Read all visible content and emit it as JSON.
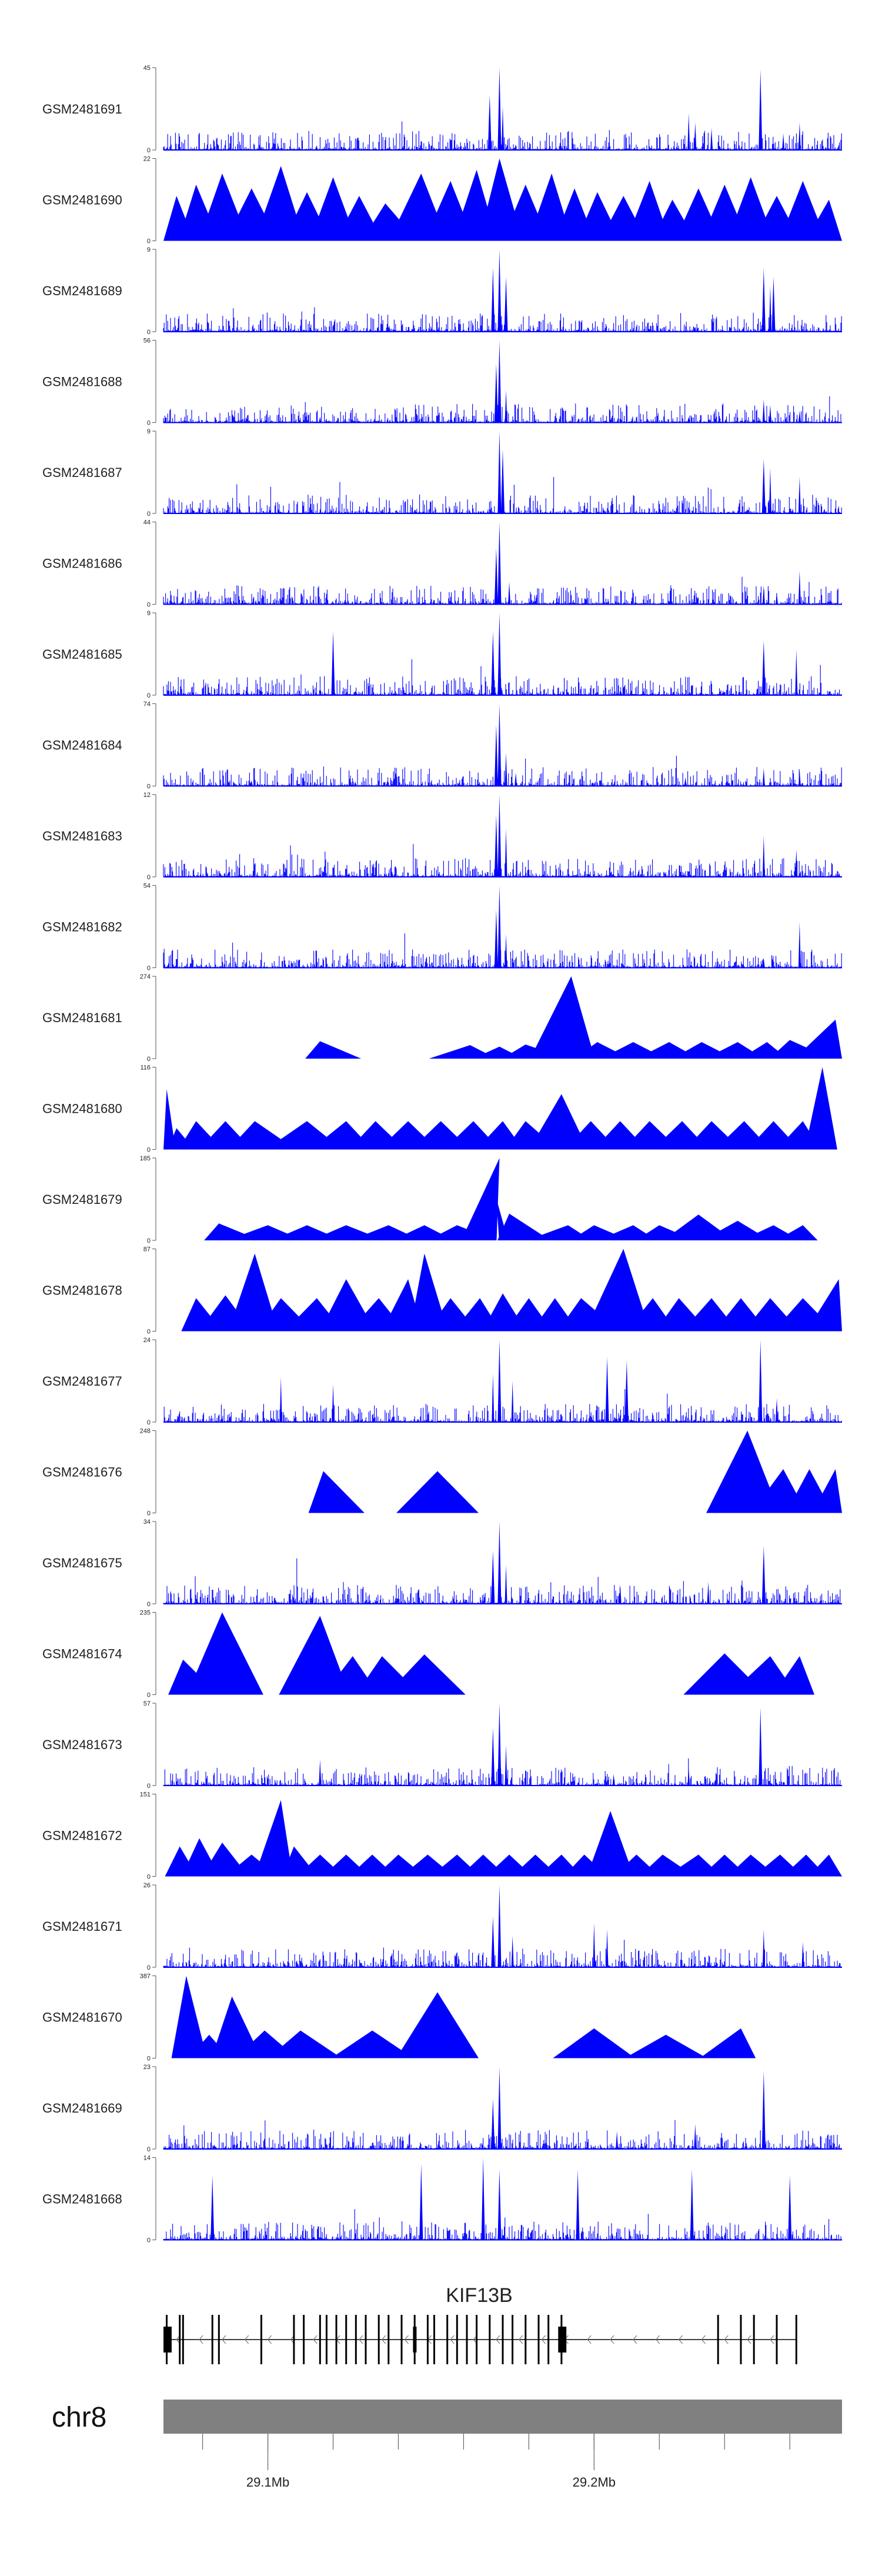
{
  "chart_data": {
    "type": "area",
    "title": "",
    "chromosome": "chr8",
    "gene": "KIF13B",
    "gene_strand": "-",
    "region_mb": [
      29.068,
      29.276
    ],
    "position_labels": [
      {
        "pos": 29.1,
        "label": "29.1Mb"
      },
      {
        "pos": 29.2,
        "label": "29.2Mb"
      }
    ],
    "minor_ticks_mb": [
      29.08,
      29.1,
      29.12,
      29.14,
      29.16,
      29.18,
      29.2,
      29.22,
      29.24,
      29.26
    ],
    "colors": {
      "signal": "#0000ff",
      "ideogram": "#808080",
      "gene": "#000000"
    },
    "hotspots_mb": [
      29.171,
      29.252,
      29.262
    ],
    "tracks": [
      {
        "name": "GSM2481691",
        "ymax": 45,
        "style": "dense",
        "peaks": [
          [
            29.171,
            45
          ],
          [
            29.168,
            30
          ],
          [
            29.172,
            24
          ],
          [
            29.229,
            20
          ],
          [
            29.251,
            44
          ],
          [
            29.231,
            15
          ],
          [
            29.236,
            12
          ],
          [
            29.263,
            15
          ],
          [
            29.258,
            9
          ]
        ]
      },
      {
        "name": "GSM2481690",
        "ymax": 22,
        "style": "sparse",
        "peaks": [
          [
            29.072,
            12
          ],
          [
            29.078,
            15
          ],
          [
            29.086,
            18
          ],
          [
            29.095,
            14
          ],
          [
            29.104,
            20
          ],
          [
            29.112,
            13
          ],
          [
            29.12,
            17
          ],
          [
            29.128,
            12
          ],
          [
            29.136,
            10
          ],
          [
            29.147,
            18
          ],
          [
            29.156,
            16
          ],
          [
            29.164,
            19
          ],
          [
            29.171,
            22
          ],
          [
            29.179,
            15
          ],
          [
            29.187,
            18
          ],
          [
            29.194,
            14
          ],
          [
            29.201,
            13
          ],
          [
            29.209,
            12
          ],
          [
            29.217,
            16
          ],
          [
            29.224,
            11
          ],
          [
            29.232,
            14
          ],
          [
            29.24,
            15
          ],
          [
            29.248,
            17
          ],
          [
            29.256,
            12
          ],
          [
            29.264,
            16
          ],
          [
            29.272,
            11
          ]
        ]
      },
      {
        "name": "GSM2481689",
        "ymax": 9,
        "style": "dense",
        "peaks": [
          [
            29.171,
            9
          ],
          [
            29.169,
            7
          ],
          [
            29.173,
            6
          ],
          [
            29.252,
            7
          ],
          [
            29.255,
            6
          ],
          [
            29.254,
            5
          ]
        ]
      },
      {
        "name": "GSM2481688",
        "ymax": 56,
        "style": "dense",
        "peaks": [
          [
            29.171,
            56
          ],
          [
            29.17,
            40
          ],
          [
            29.173,
            22
          ],
          [
            29.252,
            16
          ],
          [
            29.254,
            12
          ],
          [
            29.263,
            8
          ],
          [
            29.116,
            4
          ],
          [
            29.229,
            4
          ]
        ]
      },
      {
        "name": "GSM2481687",
        "ymax": 9,
        "style": "dense",
        "peaks": [
          [
            29.171,
            9
          ],
          [
            29.172,
            7
          ],
          [
            29.252,
            6
          ],
          [
            29.254,
            5
          ],
          [
            29.263,
            4
          ]
        ]
      },
      {
        "name": "GSM2481686",
        "ymax": 44,
        "style": "dense",
        "peaks": [
          [
            29.171,
            44
          ],
          [
            29.17,
            30
          ],
          [
            29.174,
            12
          ],
          [
            29.252,
            10
          ],
          [
            29.263,
            18
          ],
          [
            29.256,
            6
          ]
        ]
      },
      {
        "name": "GSM2481685",
        "ymax": 9,
        "style": "dense",
        "peaks": [
          [
            29.171,
            9
          ],
          [
            29.169,
            7
          ],
          [
            29.12,
            7
          ],
          [
            29.252,
            6
          ],
          [
            29.262,
            5
          ]
        ]
      },
      {
        "name": "GSM2481684",
        "ymax": 74,
        "style": "dense",
        "peaks": [
          [
            29.171,
            74
          ],
          [
            29.17,
            55
          ],
          [
            29.173,
            30
          ],
          [
            29.176,
            12
          ],
          [
            29.252,
            16
          ],
          [
            29.263,
            14
          ],
          [
            29.228,
            8
          ],
          [
            29.095,
            5
          ]
        ]
      },
      {
        "name": "GSM2481683",
        "ymax": 12,
        "style": "dense",
        "peaks": [
          [
            29.171,
            12
          ],
          [
            29.17,
            9
          ],
          [
            29.173,
            7
          ],
          [
            29.252,
            6
          ],
          [
            29.262,
            4
          ]
        ]
      },
      {
        "name": "GSM2481682",
        "ymax": 54,
        "style": "dense",
        "peaks": [
          [
            29.171,
            54
          ],
          [
            29.17,
            38
          ],
          [
            29.173,
            22
          ],
          [
            29.263,
            30
          ],
          [
            29.252,
            6
          ]
        ]
      },
      {
        "name": "GSM2481681",
        "ymax": 274,
        "style": "sparse",
        "peaks": [
          [
            29.116,
            58
          ],
          [
            29.162,
            45
          ],
          [
            29.171,
            40
          ],
          [
            29.179,
            47
          ],
          [
            29.193,
            274
          ],
          [
            29.201,
            55
          ],
          [
            29.212,
            55
          ],
          [
            29.223,
            55
          ],
          [
            29.233,
            55
          ],
          [
            29.244,
            55
          ],
          [
            29.253,
            55
          ],
          [
            29.26,
            62
          ],
          [
            29.274,
            130
          ]
        ]
      },
      {
        "name": "GSM2481680",
        "ymax": 116,
        "style": "sparse",
        "peaks": [
          [
            29.069,
            85
          ],
          [
            29.072,
            30
          ],
          [
            29.078,
            40
          ],
          [
            29.087,
            40
          ],
          [
            29.096,
            40
          ],
          [
            29.112,
            40
          ],
          [
            29.124,
            40
          ],
          [
            29.133,
            40
          ],
          [
            29.143,
            40
          ],
          [
            29.153,
            40
          ],
          [
            29.163,
            40
          ],
          [
            29.172,
            40
          ],
          [
            29.179,
            40
          ],
          [
            29.19,
            78
          ],
          [
            29.199,
            40
          ],
          [
            29.208,
            40
          ],
          [
            29.217,
            40
          ],
          [
            29.227,
            40
          ],
          [
            29.236,
            40
          ],
          [
            29.246,
            40
          ],
          [
            29.255,
            40
          ],
          [
            29.264,
            40
          ],
          [
            29.27,
            116
          ]
        ]
      },
      {
        "name": "GSM2481679",
        "ymax": 185,
        "style": "sparse",
        "peaks": [
          [
            29.085,
            38
          ],
          [
            29.1,
            34
          ],
          [
            29.112,
            34
          ],
          [
            29.124,
            34
          ],
          [
            29.137,
            34
          ],
          [
            29.148,
            34
          ],
          [
            29.158,
            34
          ],
          [
            29.171,
            185
          ],
          [
            29.17,
            95
          ],
          [
            29.174,
            60
          ],
          [
            29.192,
            34
          ],
          [
            29.2,
            34
          ],
          [
            29.212,
            34
          ],
          [
            29.22,
            34
          ],
          [
            29.232,
            58
          ],
          [
            29.244,
            44
          ],
          [
            29.255,
            34
          ],
          [
            29.264,
            34
          ]
        ]
      },
      {
        "name": "GSM2481678",
        "ymax": 87,
        "style": "sparse",
        "peaks": [
          [
            29.078,
            35
          ],
          [
            29.087,
            38
          ],
          [
            29.096,
            82
          ],
          [
            29.104,
            35
          ],
          [
            29.115,
            35
          ],
          [
            29.124,
            55
          ],
          [
            29.134,
            35
          ],
          [
            29.143,
            55
          ],
          [
            29.148,
            82
          ],
          [
            29.156,
            35
          ],
          [
            29.165,
            35
          ],
          [
            29.172,
            40
          ],
          [
            29.18,
            35
          ],
          [
            29.188,
            35
          ],
          [
            29.196,
            35
          ],
          [
            29.209,
            87
          ],
          [
            29.218,
            35
          ],
          [
            29.226,
            35
          ],
          [
            29.236,
            35
          ],
          [
            29.245,
            35
          ],
          [
            29.254,
            35
          ],
          [
            29.264,
            35
          ],
          [
            29.275,
            55
          ]
        ]
      },
      {
        "name": "GSM2481677",
        "ymax": 24,
        "style": "dense",
        "peaks": [
          [
            29.171,
            24
          ],
          [
            29.169,
            14
          ],
          [
            29.175,
            12
          ],
          [
            29.12,
            11
          ],
          [
            29.104,
            13
          ],
          [
            29.204,
            19
          ],
          [
            29.21,
            18
          ],
          [
            29.251,
            24
          ],
          [
            29.256,
            7
          ]
        ]
      },
      {
        "name": "GSM2481676",
        "ymax": 248,
        "style": "sparse",
        "peaks": [
          [
            29.117,
            126
          ],
          [
            29.152,
            126
          ],
          [
            29.247,
            248
          ],
          [
            29.258,
            132
          ],
          [
            29.266,
            132
          ],
          [
            29.274,
            132
          ]
        ]
      },
      {
        "name": "GSM2481675",
        "ymax": 34,
        "style": "dense",
        "peaks": [
          [
            29.171,
            34
          ],
          [
            29.169,
            22
          ],
          [
            29.173,
            16
          ],
          [
            29.252,
            24
          ],
          [
            29.235,
            9
          ],
          [
            29.208,
            8
          ]
        ]
      },
      {
        "name": "GSM2481674",
        "ymax": 235,
        "style": "sparse",
        "peaks": [
          [
            29.074,
            100
          ],
          [
            29.086,
            235
          ],
          [
            29.116,
            225
          ],
          [
            29.126,
            110
          ],
          [
            29.135,
            110
          ],
          [
            29.148,
            115
          ],
          [
            29.24,
            118
          ],
          [
            29.254,
            110
          ],
          [
            29.263,
            110
          ]
        ]
      },
      {
        "name": "GSM2481673",
        "ymax": 57,
        "style": "dense",
        "peaks": [
          [
            29.171,
            57
          ],
          [
            29.169,
            40
          ],
          [
            29.173,
            28
          ],
          [
            29.116,
            18
          ],
          [
            29.251,
            54
          ],
          [
            29.229,
            12
          ],
          [
            29.206,
            8
          ]
        ]
      },
      {
        "name": "GSM2481672",
        "ymax": 151,
        "style": "sparse",
        "peaks": [
          [
            29.073,
            55
          ],
          [
            29.079,
            70
          ],
          [
            29.086,
            62
          ],
          [
            29.095,
            40
          ],
          [
            29.104,
            140
          ],
          [
            29.108,
            55
          ],
          [
            29.116,
            40
          ],
          [
            29.124,
            40
          ],
          [
            29.132,
            40
          ],
          [
            29.14,
            40
          ],
          [
            29.149,
            40
          ],
          [
            29.158,
            40
          ],
          [
            29.166,
            40
          ],
          [
            29.174,
            40
          ],
          [
            29.182,
            40
          ],
          [
            29.19,
            40
          ],
          [
            29.197,
            40
          ],
          [
            29.205,
            120
          ],
          [
            29.213,
            40
          ],
          [
            29.221,
            40
          ],
          [
            29.232,
            40
          ],
          [
            29.24,
            40
          ],
          [
            29.248,
            40
          ],
          [
            29.257,
            40
          ],
          [
            29.265,
            40
          ],
          [
            29.272,
            40
          ]
        ]
      },
      {
        "name": "GSM2481671",
        "ymax": 26,
        "style": "dense",
        "peaks": [
          [
            29.171,
            26
          ],
          [
            29.169,
            16
          ],
          [
            29.175,
            10
          ],
          [
            29.2,
            14
          ],
          [
            29.204,
            12
          ],
          [
            29.252,
            12
          ],
          [
            29.264,
            8
          ]
        ]
      },
      {
        "name": "GSM2481670",
        "ymax": 387,
        "style": "sparse",
        "peaks": [
          [
            29.075,
            387
          ],
          [
            29.082,
            110
          ],
          [
            29.089,
            290
          ],
          [
            29.099,
            130
          ],
          [
            29.11,
            130
          ],
          [
            29.132,
            130
          ],
          [
            29.152,
            310
          ],
          [
            29.2,
            140
          ],
          [
            29.222,
            110
          ],
          [
            29.245,
            140
          ]
        ]
      },
      {
        "name": "GSM2481669",
        "ymax": 23,
        "style": "dense",
        "peaks": [
          [
            29.171,
            23
          ],
          [
            29.169,
            14
          ],
          [
            29.252,
            22
          ],
          [
            29.231,
            7
          ],
          [
            29.207,
            5
          ]
        ]
      },
      {
        "name": "GSM2481668",
        "ymax": 14,
        "style": "dense",
        "peaks": [
          [
            29.166,
            14
          ],
          [
            29.171,
            12
          ],
          [
            29.147,
            13
          ],
          [
            29.083,
            11
          ],
          [
            29.195,
            12
          ],
          [
            29.23,
            12
          ],
          [
            29.26,
            11
          ]
        ]
      }
    ],
    "gene_model": {
      "start_mb": 29.068,
      "end_mb": 29.262,
      "exons_mb": [
        29.069,
        29.073,
        29.074,
        29.083,
        29.085,
        29.098,
        29.108,
        29.111,
        29.116,
        29.118,
        29.121,
        29.124,
        29.127,
        29.13,
        29.134,
        29.137,
        29.141,
        29.145,
        29.149,
        29.151,
        29.155,
        29.158,
        29.161,
        29.164,
        29.168,
        29.172,
        29.175,
        29.179,
        29.183,
        29.186,
        29.19,
        29.238,
        29.245,
        29.249,
        29.256,
        29.262
      ],
      "utr_blocks_mb": [
        [
          29.068,
          29.0705
        ],
        [
          29.1445,
          29.1455
        ],
        [
          29.189,
          29.1915
        ]
      ]
    }
  }
}
